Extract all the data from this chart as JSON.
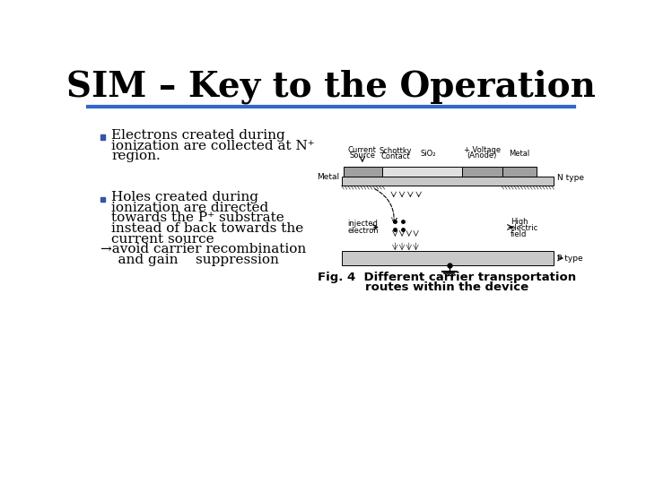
{
  "title": "SIM – Key to the Operation",
  "title_fontsize": 28,
  "title_font": "serif",
  "title_bold": true,
  "line_color": "#3366cc",
  "bg_color": "#ffffff",
  "bullet_color": "#3355aa",
  "bullet1_lines": [
    "Electrons created during",
    "ionization are collected at N⁺",
    "region."
  ],
  "bullet2_lines": [
    "Holes created during",
    "ionization are directed",
    "towards the P⁺ substrate",
    "instead of back towards the",
    "current source"
  ],
  "arrow_line": "→avoid carrier recombination",
  "arrow_line2": "    and gain    suppression",
  "fig_caption_line1": "Fig. 4  Different carrier transportation",
  "fig_caption_line2": "routes within the device",
  "gray_light": "#c8c8c8",
  "gray_med": "#a0a0a0",
  "black": "#000000",
  "white": "#ffffff"
}
